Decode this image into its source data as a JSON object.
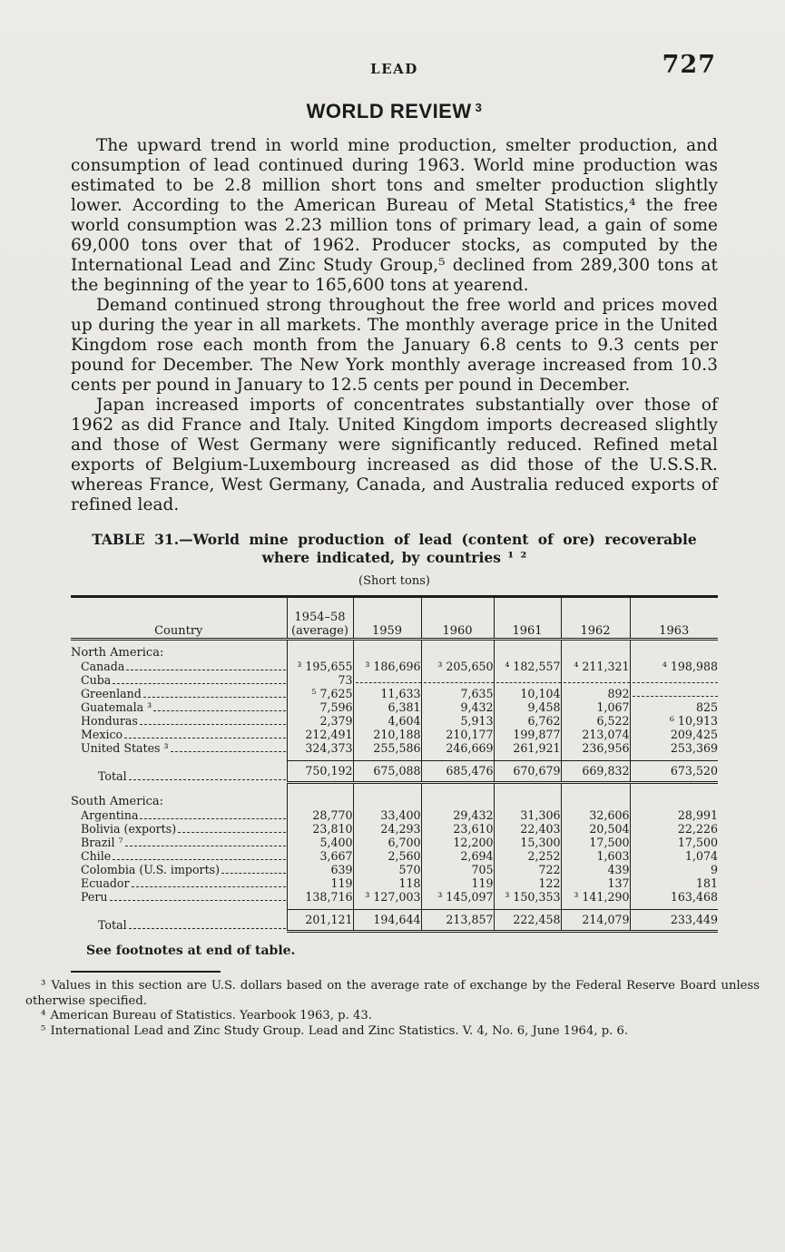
{
  "page": {
    "running_head": "LEAD",
    "page_number": "727",
    "section_title": "WORLD REVIEW",
    "section_title_sup": "3",
    "paragraphs": [
      "The upward trend in world mine production, smelter production, and consumption of lead continued during 1963.  World mine production was estimated to be 2.8 million short tons and smelter production slightly lower.  According to the American Bureau of Metal Statistics,⁴ the free world consumption was 2.23 million tons of primary lead, a gain of some 69,000 tons over that of 1962.  Producer stocks, as computed by the International Lead and Zinc Study Group,⁵ declined from 289,300 tons at the beginning of the year to 165,600 tons at yearend.",
      "Demand continued strong throughout the free world and prices moved up during the year in all markets.  The monthly average price in the United Kingdom rose each month from the January 6.8 cents to 9.3 cents per pound for December.  The New York monthly average increased from 10.3 cents per pound in January to 12.5 cents per pound in December.",
      "Japan increased imports of concentrates substantially over those of 1962 as did France and Italy.  United Kingdom imports decreased slightly and those of West Germany were significantly reduced.  Refined metal exports of Belgium-Luxembourg increased as did those of the U.S.S.R. whereas France, West Germany, Canada, and Australia reduced exports of refined lead."
    ]
  },
  "table": {
    "title_line1": "TABLE 31.—World mine production of lead (content of ore) recoverable",
    "title_line2": "where indicated, by countries ¹ ²",
    "units": "(Short tons)",
    "columns": [
      "Country",
      "1954–58\n(average)",
      "1959",
      "1960",
      "1961",
      "1962",
      "1963"
    ],
    "groups": [
      {
        "label": "North America:",
        "rows": [
          {
            "c": "Canada",
            "v": [
              "³ 195,655",
              "³ 186,696",
              "³ 205,650",
              "⁴ 182,557",
              "⁴ 211,321",
              "⁴ 198,988"
            ]
          },
          {
            "c": "Cuba",
            "v": [
              "73",
              "",
              "",
              "",
              "",
              ""
            ]
          },
          {
            "c": "Greenland",
            "v": [
              "⁵ 7,625",
              "11,633",
              "7,635",
              "10,104",
              "892",
              ""
            ]
          },
          {
            "c": "Guatemala ³",
            "v": [
              "7,596",
              "6,381",
              "9,432",
              "9,458",
              "1,067",
              "825"
            ]
          },
          {
            "c": "Honduras",
            "v": [
              "2,379",
              "4,604",
              "5,913",
              "6,762",
              "6,522",
              "⁶ 10,913"
            ]
          },
          {
            "c": "Mexico",
            "v": [
              "212,491",
              "210,188",
              "210,177",
              "199,877",
              "213,074",
              "209,425"
            ]
          },
          {
            "c": "United States ³",
            "v": [
              "324,373",
              "255,586",
              "246,669",
              "261,921",
              "236,956",
              "253,369"
            ]
          }
        ],
        "total": {
          "c": "Total",
          "v": [
            "750,192",
            "675,088",
            "685,476",
            "670,679",
            "669,832",
            "673,520"
          ]
        }
      },
      {
        "label": "South America:",
        "rows": [
          {
            "c": "Argentina",
            "v": [
              "28,770",
              "33,400",
              "29,432",
              "31,306",
              "32,606",
              "28,991"
            ]
          },
          {
            "c": "Bolivia (exports)",
            "v": [
              "23,810",
              "24,293",
              "23,610",
              "22,403",
              "20,504",
              "22,226"
            ]
          },
          {
            "c": "Brazil ⁷",
            "v": [
              "5,400",
              "6,700",
              "12,200",
              "15,300",
              "17,500",
              "17,500"
            ]
          },
          {
            "c": "Chile",
            "v": [
              "3,667",
              "2,560",
              "2,694",
              "2,252",
              "1,603",
              "1,074"
            ]
          },
          {
            "c": "Colombia (U.S. imports)",
            "v": [
              "639",
              "570",
              "705",
              "722",
              "439",
              "9"
            ]
          },
          {
            "c": "Ecuador",
            "v": [
              "119",
              "118",
              "119",
              "122",
              "137",
              "181"
            ]
          },
          {
            "c": "Peru",
            "v": [
              "138,716",
              "³ 127,003",
              "³ 145,097",
              "³ 150,353",
              "³ 141,290",
              "163,468"
            ]
          }
        ],
        "total": {
          "c": "Total",
          "v": [
            "201,121",
            "194,644",
            "213,857",
            "222,458",
            "214,079",
            "233,449"
          ]
        }
      }
    ],
    "see_note": "See footnotes at end of table."
  },
  "footnotes": [
    {
      "marker": "³",
      "text": "Values in this section are U.S. dollars based on the average rate of exchange by the Federal Reserve Board unless otherwise specified."
    },
    {
      "marker": "⁴",
      "text": "American Bureau of Statistics.  Yearbook 1963, p. 43."
    },
    {
      "marker": "⁵",
      "text": "International Lead and Zinc Study Group.  Lead and Zinc Statistics.  V. 4, No. 6, June 1964, p. 6."
    }
  ]
}
